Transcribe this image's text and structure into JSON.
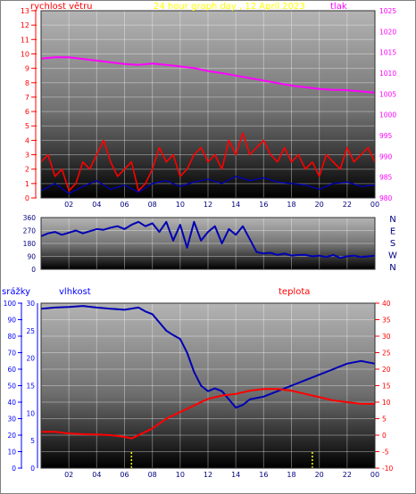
{
  "colors": {
    "wind": "#ff0000",
    "pressure": "#ff00ff",
    "title": "#ffff00",
    "direction": "#0000b4",
    "humidity": "#0000b4",
    "temperature": "#ff0000",
    "rain": "#ffff00",
    "axis_blue": "#0000ff",
    "axis_red": "#ff0000",
    "axis_dark": "#000080"
  },
  "chart_data": [
    {
      "type": "line",
      "title": "24 hour graph day , 12 April 2023",
      "left_label": "rychlost větru",
      "right_label": "tlak",
      "x_ticks": [
        "02",
        "04",
        "06",
        "08",
        "10",
        "12",
        "14",
        "16",
        "18",
        "20",
        "22",
        "00"
      ],
      "left_ticks": [
        "0",
        "1",
        "2",
        "3",
        "4",
        "5",
        "6",
        "7",
        "8",
        "9",
        "10",
        "11",
        "12",
        "13"
      ],
      "right_ticks": [
        "980",
        "985",
        "990",
        "995",
        "1000",
        "1005",
        "1010",
        "1015",
        "1020",
        "1025"
      ],
      "ylim_left": [
        0,
        13
      ],
      "ylim_right": [
        980,
        1025
      ],
      "xlim": [
        0,
        24
      ],
      "grid": true,
      "series": [
        {
          "key": "pressure",
          "axis": "right",
          "x": [
            0,
            1,
            2,
            3,
            4,
            5,
            6,
            7,
            8,
            9,
            10,
            11,
            12,
            13,
            14,
            15,
            16,
            17,
            18,
            19,
            20,
            21,
            22,
            23,
            24
          ],
          "y": [
            1013.5,
            1013.8,
            1013.8,
            1013.4,
            1013.0,
            1012.6,
            1012.2,
            1012.0,
            1012.3,
            1012.0,
            1011.6,
            1011.2,
            1010.5,
            1010.0,
            1009.4,
            1008.8,
            1008.2,
            1007.6,
            1007.0,
            1006.6,
            1006.2,
            1006.0,
            1005.9,
            1005.6,
            1005.3
          ]
        },
        {
          "key": "wind_gust",
          "axis": "left",
          "x": [
            0,
            0.5,
            1,
            1.5,
            2,
            2.5,
            3,
            3.5,
            4,
            4.5,
            5,
            5.5,
            6,
            6.5,
            7,
            7.5,
            8,
            8.5,
            9,
            9.5,
            10,
            10.5,
            11,
            11.5,
            12,
            12.5,
            13,
            13.5,
            14,
            14.5,
            15,
            15.5,
            16,
            16.5,
            17,
            17.5,
            18,
            18.5,
            19,
            19.5,
            20,
            20.5,
            21,
            21.5,
            22,
            22.5,
            23,
            23.5,
            24
          ],
          "y": [
            2.5,
            3.0,
            1.5,
            2.0,
            0.5,
            1.0,
            2.5,
            2.0,
            3.0,
            4.0,
            2.5,
            1.5,
            2.0,
            2.5,
            0.5,
            1.0,
            2.0,
            3.5,
            2.5,
            3.0,
            1.5,
            2.0,
            3.0,
            3.5,
            2.5,
            3.0,
            2.0,
            4.0,
            3.0,
            4.5,
            3.0,
            3.5,
            4.0,
            3.0,
            2.5,
            3.5,
            2.5,
            3.0,
            2.0,
            2.5,
            1.5,
            3.0,
            2.5,
            2.0,
            3.5,
            2.5,
            3.0,
            3.5,
            2.5
          ]
        },
        {
          "key": "wind_avg",
          "axis": "left",
          "x": [
            0,
            1,
            2,
            3,
            4,
            5,
            6,
            7,
            8,
            9,
            10,
            11,
            12,
            13,
            14,
            15,
            16,
            17,
            18,
            19,
            20,
            21,
            22,
            23,
            24
          ],
          "y": [
            0.5,
            1.0,
            0.3,
            0.8,
            1.2,
            0.6,
            0.9,
            0.4,
            1.0,
            1.2,
            0.8,
            1.1,
            1.3,
            1.0,
            1.5,
            1.2,
            1.4,
            1.1,
            1.0,
            0.9,
            0.6,
            1.0,
            1.1,
            0.8,
            0.9
          ]
        }
      ]
    },
    {
      "type": "line",
      "x_ticks": [
        "02",
        "04",
        "06",
        "08",
        "10",
        "12",
        "14",
        "16",
        "18",
        "20",
        "22",
        "00"
      ],
      "left_ticks": [
        "0",
        "90",
        "180",
        "270",
        "360"
      ],
      "right_ticks": [
        "N",
        "W",
        "S",
        "E",
        "N"
      ],
      "ylim": [
        0,
        360
      ],
      "xlim": [
        0,
        24
      ],
      "series": [
        {
          "key": "direction",
          "x": [
            0,
            0.5,
            1,
            1.5,
            2,
            2.5,
            3,
            3.5,
            4,
            4.5,
            5,
            5.5,
            6,
            6.5,
            7,
            7.5,
            8,
            8.5,
            9,
            9.5,
            10,
            10.5,
            11,
            11.5,
            12,
            12.5,
            13,
            13.5,
            14,
            14.5,
            15,
            15.5,
            16,
            16.5,
            17,
            17.5,
            18,
            18.5,
            19,
            19.5,
            20,
            20.5,
            21,
            21.5,
            22,
            22.5,
            23,
            23.5,
            24
          ],
          "y": [
            230,
            250,
            260,
            240,
            255,
            270,
            250,
            265,
            280,
            275,
            290,
            300,
            280,
            310,
            330,
            300,
            320,
            260,
            330,
            200,
            310,
            150,
            330,
            200,
            260,
            300,
            180,
            280,
            240,
            300,
            210,
            120,
            110,
            115,
            100,
            110,
            95,
            100,
            100,
            90,
            95,
            85,
            100,
            80,
            90,
            95,
            85,
            90,
            95
          ]
        }
      ]
    },
    {
      "type": "line",
      "left_outer_label": "srážky",
      "left_label": "vlhkost",
      "right_label": "teplota",
      "x_ticks": [
        "02",
        "04",
        "06",
        "08",
        "10",
        "12",
        "14",
        "16",
        "18",
        "20",
        "22",
        "00"
      ],
      "rain_ticks": [
        "0",
        "10",
        "20",
        "30",
        "40",
        "50",
        "60",
        "70",
        "80",
        "90",
        "100"
      ],
      "hum_ticks": [
        "0",
        "5",
        "10",
        "15",
        "20",
        "25",
        "30"
      ],
      "temp_ticks": [
        "-10",
        "-5",
        "0",
        "5",
        "10",
        "15",
        "20",
        "25",
        "30",
        "35",
        "40"
      ],
      "ylim_rain": [
        0,
        100
      ],
      "ylim_hum": [
        0,
        30
      ],
      "ylim_temp": [
        -10,
        40
      ],
      "xlim": [
        0,
        24
      ],
      "grid": true,
      "series": [
        {
          "key": "humidity",
          "axis": "hum",
          "x": [
            0,
            1,
            2,
            3,
            4,
            5,
            6,
            7,
            7.5,
            8,
            8.5,
            9,
            9.5,
            10,
            10.5,
            11,
            11.5,
            12,
            12.5,
            13,
            13.5,
            14,
            14.5,
            15,
            16,
            17,
            18,
            19,
            20,
            21,
            22,
            23,
            24
          ],
          "y": [
            29.0,
            29.2,
            29.3,
            29.5,
            29.2,
            29.0,
            28.8,
            29.2,
            28.5,
            28.0,
            26.5,
            25.0,
            24.2,
            23.5,
            21.0,
            17.5,
            15.0,
            14.0,
            14.5,
            14.0,
            12.5,
            11.0,
            11.5,
            12.5,
            13.0,
            14.0,
            15.0,
            16.0,
            17.0,
            18.0,
            19.0,
            19.5,
            19.0
          ]
        },
        {
          "key": "temperature",
          "axis": "temp",
          "x": [
            0,
            1,
            2,
            3,
            4,
            5,
            6,
            6.5,
            7,
            7.5,
            8,
            9,
            10,
            11,
            12,
            13,
            14,
            15,
            16,
            17,
            18,
            19,
            20,
            21,
            22,
            23,
            24
          ],
          "y": [
            1.0,
            1.0,
            0.5,
            0.3,
            0.2,
            0.0,
            -0.5,
            -1.0,
            0.0,
            1.0,
            2.0,
            5.0,
            7.0,
            9.0,
            11.0,
            12.0,
            12.5,
            13.5,
            14.0,
            14.0,
            13.5,
            12.5,
            11.5,
            10.5,
            10.0,
            9.5,
            9.5
          ]
        },
        {
          "key": "rain",
          "axis": "rain",
          "x": [
            6.5,
            19.5
          ],
          "y": [
            10,
            10
          ]
        }
      ]
    }
  ]
}
